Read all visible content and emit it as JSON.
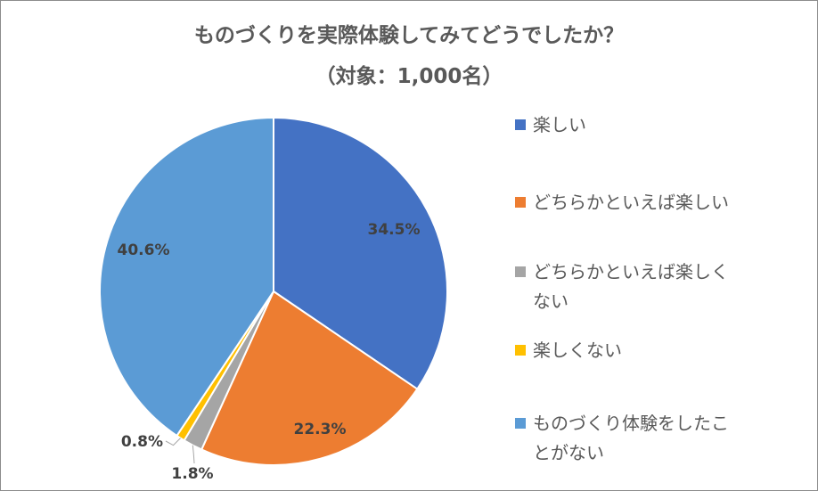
{
  "title": "ものづくりを実際体験してみてどうでしたか？",
  "subtitle": "（対象：1,000名）",
  "chart_data": {
    "type": "pie",
    "title": "ものづくりを実際体験してみてどうでしたか？",
    "subtitle": "（対象：1,000名）",
    "legend_position": "right",
    "slices": [
      {
        "label": "楽しい",
        "value": 34.5,
        "display": "34.5%",
        "color": "#4472C4"
      },
      {
        "label": "どちらかといえば楽しい",
        "value": 22.3,
        "display": "22.3%",
        "color": "#ED7D31"
      },
      {
        "label": "どちらかといえば楽しくない",
        "value": 1.8,
        "display": "1.8%",
        "color": "#A5A5A5"
      },
      {
        "label": "楽しくない",
        "value": 0.8,
        "display": "0.8%",
        "color": "#FFC000"
      },
      {
        "label": "ものづくり体験をしたことがない",
        "value": 40.6,
        "display": "40.6%",
        "color": "#5B9BD5"
      }
    ]
  },
  "legend": {
    "items": [
      {
        "line1": "楽しい",
        "line2": "",
        "color": "#4472C4"
      },
      {
        "line1": "どちらかといえば楽しい",
        "line2": "",
        "color": "#ED7D31"
      },
      {
        "line1": "どちらかといえば楽しく",
        "line2": "ない",
        "color": "#A5A5A5"
      },
      {
        "line1": "楽しくない",
        "line2": "",
        "color": "#FFC000"
      },
      {
        "line1": "ものづくり体験をしたこ",
        "line2": "とがない",
        "color": "#5B9BD5"
      }
    ]
  }
}
